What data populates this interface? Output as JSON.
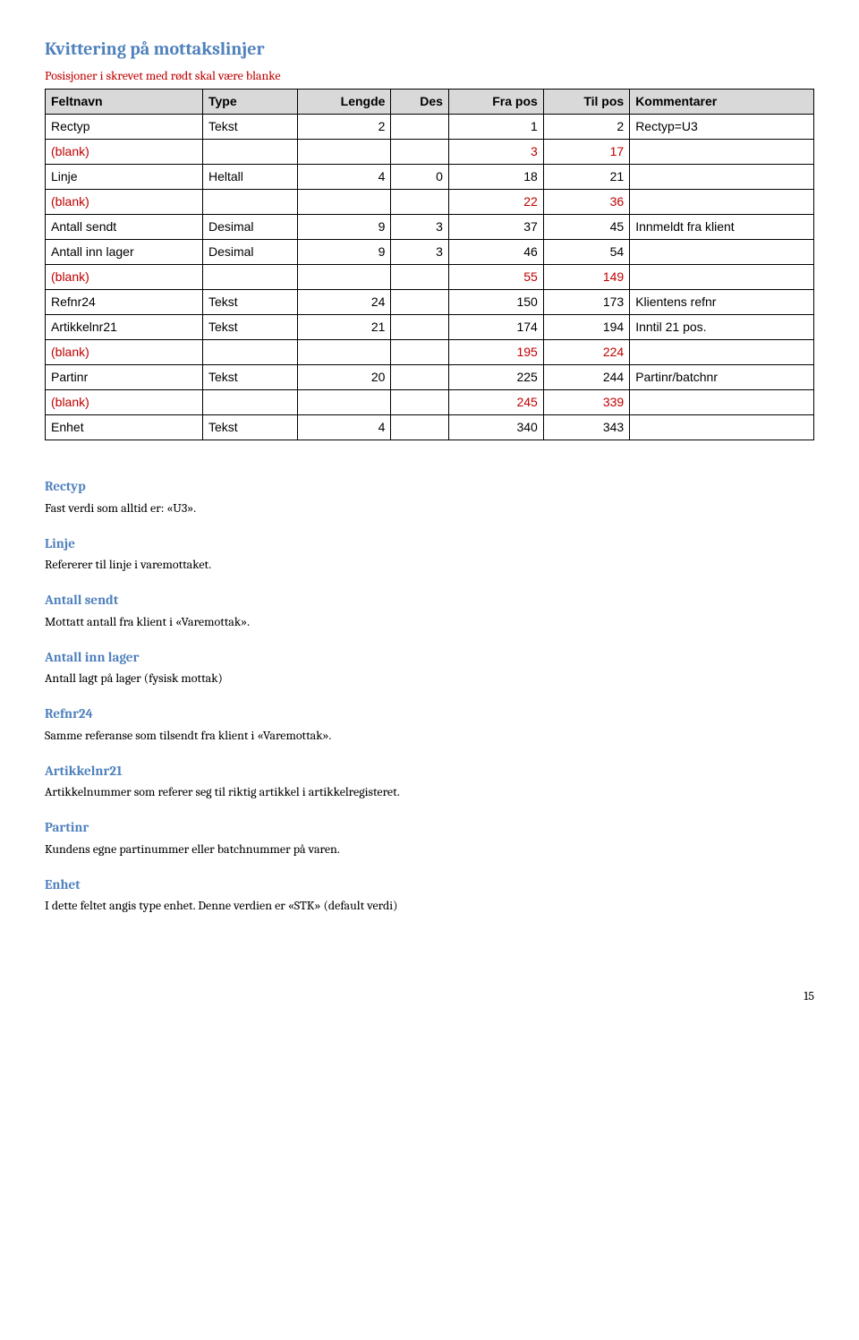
{
  "title": "Kvittering på mottakslinjer",
  "subtitle": "Posisjoner i skrevet med rødt skal være blanke",
  "table": {
    "headers": [
      "Feltnavn",
      "Type",
      "Lengde",
      "Des",
      "Fra pos",
      "Til pos",
      "Kommentarer"
    ],
    "rows": [
      {
        "name": "Rectyp",
        "type": "Tekst",
        "len": "2",
        "des": "",
        "from": "1",
        "to": "2",
        "comment": "Rectyp=U3",
        "blank": false
      },
      {
        "name": "(blank)",
        "type": "",
        "len": "",
        "des": "",
        "from": "3",
        "to": "17",
        "comment": "",
        "blank": true
      },
      {
        "name": "Linje",
        "type": "Heltall",
        "len": "4",
        "des": "0",
        "from": "18",
        "to": "21",
        "comment": "",
        "blank": false
      },
      {
        "name": "(blank)",
        "type": "",
        "len": "",
        "des": "",
        "from": "22",
        "to": "36",
        "comment": "",
        "blank": true
      },
      {
        "name": "Antall sendt",
        "type": "Desimal",
        "len": "9",
        "des": "3",
        "from": "37",
        "to": "45",
        "comment": "Innmeldt fra klient",
        "blank": false
      },
      {
        "name": "Antall inn lager",
        "type": "Desimal",
        "len": "9",
        "des": "3",
        "from": "46",
        "to": "54",
        "comment": "",
        "blank": false
      },
      {
        "name": "(blank)",
        "type": "",
        "len": "",
        "des": "",
        "from": "55",
        "to": "149",
        "comment": "",
        "blank": true
      },
      {
        "name": "Refnr24",
        "type": "Tekst",
        "len": "24",
        "des": "",
        "from": "150",
        "to": "173",
        "comment": "Klientens refnr",
        "blank": false
      },
      {
        "name": "Artikkelnr21",
        "type": "Tekst",
        "len": "21",
        "des": "",
        "from": "174",
        "to": "194",
        "comment": "Inntil 21 pos.",
        "blank": false
      },
      {
        "name": "(blank)",
        "type": "",
        "len": "",
        "des": "",
        "from": "195",
        "to": "224",
        "comment": "",
        "blank": true
      },
      {
        "name": "Partinr",
        "type": "Tekst",
        "len": "20",
        "des": "",
        "from": "225",
        "to": "244",
        "comment": "Partinr/batchnr",
        "blank": false
      },
      {
        "name": "(blank)",
        "type": "",
        "len": "",
        "des": "",
        "from": "245",
        "to": "339",
        "comment": "",
        "blank": true
      },
      {
        "name": "Enhet",
        "type": "Tekst",
        "len": "4",
        "des": "",
        "from": "340",
        "to": "343",
        "comment": "",
        "blank": false
      }
    ]
  },
  "fields": [
    {
      "heading": "Rectyp",
      "desc": "Fast verdi som alltid er: «U3»."
    },
    {
      "heading": "Linje",
      "desc": "Refererer til linje i varemottaket."
    },
    {
      "heading": "Antall sendt",
      "desc": "Mottatt antall fra klient i «Varemottak»."
    },
    {
      "heading": "Antall inn lager",
      "desc": "Antall lagt på lager (fysisk mottak)"
    },
    {
      "heading": "Refnr24",
      "desc": "Samme referanse som tilsendt fra klient i «Varemottak»."
    },
    {
      "heading": "Artikkelnr21",
      "desc": "Artikkelnummer som referer seg til riktig artikkel i artikkelregisteret."
    },
    {
      "heading": "Partinr",
      "desc": "Kundens egne partinummer eller batchnummer på varen."
    },
    {
      "heading": "Enhet",
      "desc": "I dette feltet angis type enhet. Denne verdien er «STK» (default verdi)"
    }
  ],
  "page_number": "15"
}
